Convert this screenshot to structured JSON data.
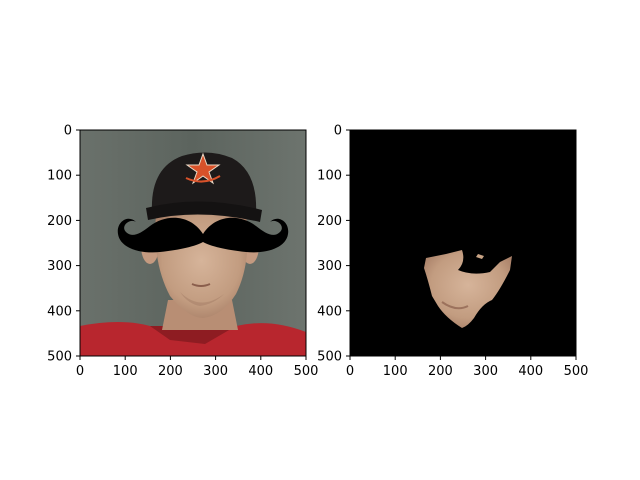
{
  "chart_data": [
    {
      "type": "image",
      "title": "",
      "xlabel": "",
      "ylabel": "",
      "xlim": [
        0,
        500
      ],
      "ylim": [
        500,
        0
      ],
      "xticks": [
        0,
        100,
        200,
        300,
        400,
        500
      ],
      "yticks": [
        0,
        100,
        200,
        300,
        400,
        500
      ],
      "content": "photo of a man in a black cap with an orange star logo and red shirt, with a cartoon black mustache overlay",
      "colors": {
        "background": "#5e6660",
        "cap": "#1d1a1a",
        "logo": "#d8522a",
        "shirt": "#b8262e",
        "skin": "#c9a486",
        "mustache": "#000000"
      }
    },
    {
      "type": "image",
      "title": "",
      "xlabel": "",
      "ylabel": "",
      "xlim": [
        0,
        500
      ],
      "ylim": [
        500,
        0
      ],
      "xticks": [
        0,
        100,
        200,
        300,
        400,
        500
      ],
      "yticks": [
        0,
        100,
        200,
        300,
        400,
        500
      ],
      "content": "segmentation mask: black background showing only the visible lower-face skin region",
      "colors": {
        "background": "#000000",
        "skin": "#c9a486"
      }
    }
  ]
}
